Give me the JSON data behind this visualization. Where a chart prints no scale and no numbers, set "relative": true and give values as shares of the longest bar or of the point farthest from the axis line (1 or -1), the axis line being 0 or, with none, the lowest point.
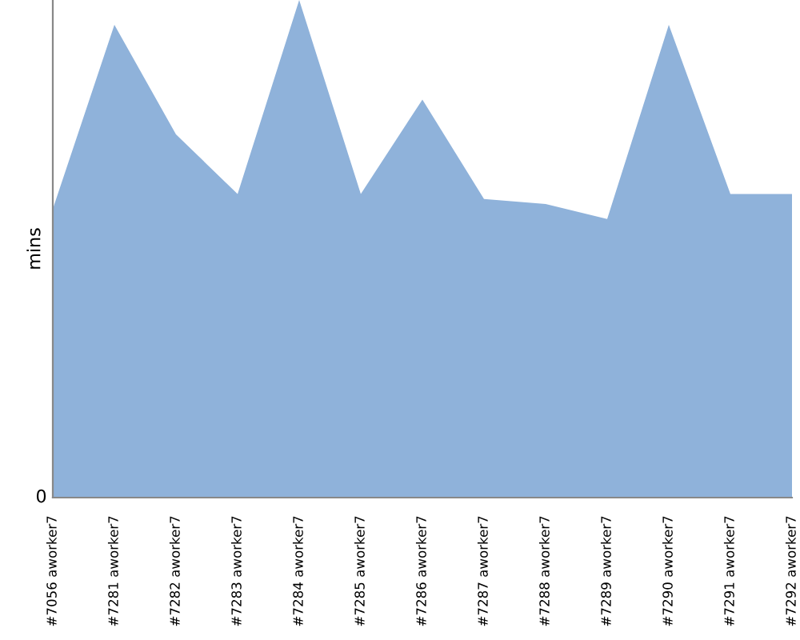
{
  "chart_data": {
    "type": "area",
    "ylabel": "mins",
    "relative": true,
    "annotations": [
      "0"
    ],
    "categories": [
      "#7056 aworker7",
      "#7281 aworker7",
      "#7282 aworker7",
      "#7283 aworker7",
      "#7284 aworker7",
      "#7285 aworker7",
      "#7286 aworker7",
      "#7287 aworker7",
      "#7288 aworker7",
      "#7289 aworker7",
      "#7290 aworker7",
      "#7291 aworker7",
      "#7292 aworker7"
    ],
    "series": [
      {
        "color": "#8fb2da",
        "values": [
          0.58,
          0.95,
          0.73,
          0.61,
          1,
          0.61,
          0.8,
          0.6,
          0.59,
          0.56,
          0.95,
          0.61,
          0.61
        ]
      }
    ],
    "grid": false,
    "legend": false
  }
}
